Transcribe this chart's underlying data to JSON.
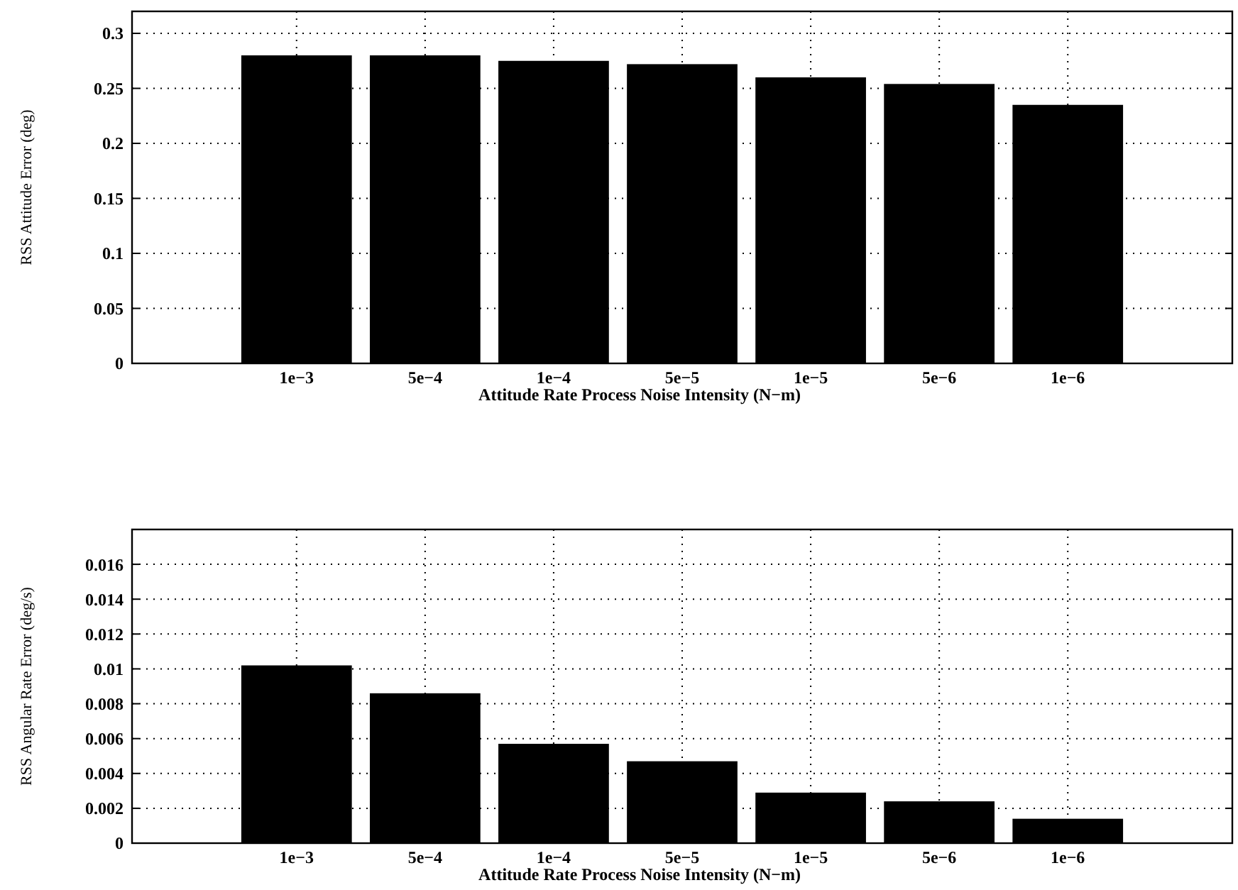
{
  "chart_data": [
    {
      "type": "bar",
      "categories": [
        "1e−3",
        "5e−4",
        "1e−4",
        "5e−5",
        "1e−5",
        "5e−6",
        "1e−6"
      ],
      "values": [
        0.28,
        0.28,
        0.275,
        0.272,
        0.26,
        0.254,
        0.235
      ],
      "color": "#000000",
      "xlabel": "Attitude Rate Process Noise Intensity (N−m)",
      "ylabel": "RSS Attitude Error (deg)",
      "ylim": [
        0,
        0.32
      ],
      "yticks": [
        0,
        0.05,
        0.1,
        0.15,
        0.2,
        0.25,
        0.3
      ],
      "grid": true
    },
    {
      "type": "bar",
      "categories": [
        "1e−3",
        "5e−4",
        "1e−4",
        "5e−5",
        "1e−5",
        "5e−6",
        "1e−6"
      ],
      "values": [
        0.0102,
        0.0086,
        0.0057,
        0.0047,
        0.0029,
        0.0024,
        0.0014
      ],
      "color": "#000000",
      "xlabel": "Attitude Rate Process Noise Intensity (N−m)",
      "ylabel": "RSS Angular Rate Error (deg/s)",
      "ylim": [
        0,
        0.018
      ],
      "yticks": [
        0,
        0.002,
        0.004,
        0.006,
        0.008,
        0.01,
        0.012,
        0.014,
        0.016
      ],
      "grid": true
    }
  ]
}
